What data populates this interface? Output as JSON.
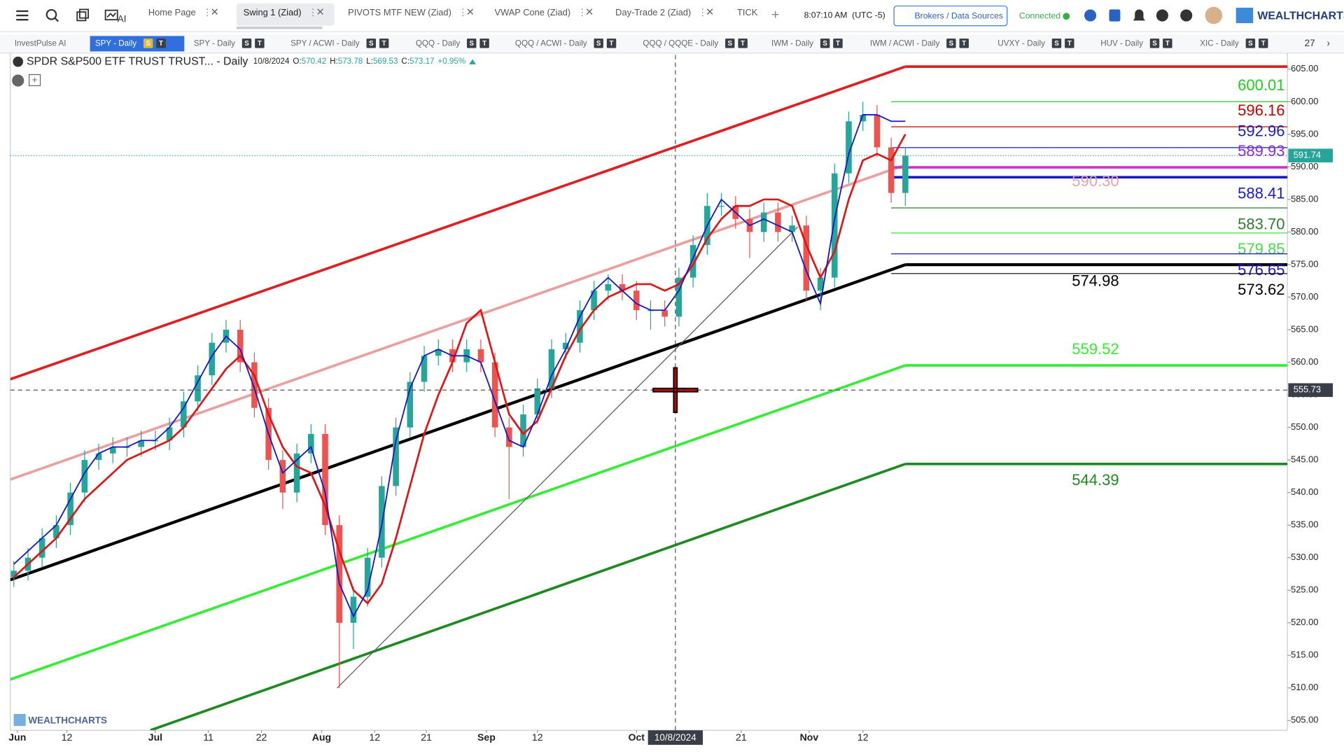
{
  "toolbar": {
    "tabs": [
      "Home Page",
      "Swing 1 (Ziad)",
      "PIVOTS MTF NEW (Ziad)",
      "VWAP Cone (Ziad)",
      "Day-Trade 2 (Ziad)",
      "TICK"
    ],
    "active_tab_index": 1,
    "time": "8:07:10 AM",
    "timezone": "(UTC -5)",
    "brokers_button": "Brokers / Data Sources",
    "status": "Connected",
    "brand": "WEALTHCHARTS",
    "ai_label": "AI"
  },
  "watchlist": {
    "tabs": [
      {
        "name": "InvestPulse AI",
        "badges": []
      },
      {
        "name": "SPY - Daily",
        "badges": [
          "S",
          "T"
        ]
      },
      {
        "name": "SPY - Daily",
        "badges": [
          "S",
          "T"
        ]
      },
      {
        "name": "SPY / ACWI - Daily",
        "badges": [
          "S",
          "T"
        ]
      },
      {
        "name": "QQQ - Daily",
        "badges": [
          "S",
          "T"
        ]
      },
      {
        "name": "QQQ / ACWI - Daily",
        "badges": [
          "S",
          "T"
        ]
      },
      {
        "name": "QQQ / QQQE - Daily",
        "badges": [
          "S",
          "T"
        ]
      },
      {
        "name": "IWM - Daily",
        "badges": [
          "S",
          "T"
        ]
      },
      {
        "name": "IWM / ACWI - Daily",
        "badges": [
          "S",
          "T"
        ]
      },
      {
        "name": "UVXY - Daily",
        "badges": [
          "S",
          "T"
        ]
      },
      {
        "name": "HUV - Daily",
        "badges": [
          "S",
          "T"
        ]
      },
      {
        "name": "XIC - Daily",
        "badges": [
          "S",
          "T"
        ]
      }
    ],
    "active_index": 1,
    "count": "27"
  },
  "chart_data": {
    "type": "candlestick",
    "title": "SPDR S&P500 ETF TRUST TRUST... - Daily",
    "legend_date": "10/8/2024",
    "legend_items": [
      {
        "key": "O:",
        "value": "570.42"
      },
      {
        "key": "H:",
        "value": "573.78"
      },
      {
        "key": "L:",
        "value": "569.53"
      },
      {
        "key": "C:",
        "value": "573.17"
      }
    ],
    "legend_change": "+0.95%",
    "watermark": "WEALTHCHARTS",
    "xlim": [
      -0.5,
      180
    ],
    "ylim": [
      503.5,
      607.2
    ],
    "xticks": [
      {
        "value": 0.5,
        "label": "Jun"
      },
      {
        "value": 7.5,
        "label": "12"
      },
      {
        "value": 20,
        "label": "Jul"
      },
      {
        "value": 27.5,
        "label": "11"
      },
      {
        "value": 35,
        "label": "22"
      },
      {
        "value": 43.5,
        "label": "Aug"
      },
      {
        "value": 51,
        "label": "12"
      },
      {
        "value": 58.3,
        "label": "21"
      },
      {
        "value": 66.8,
        "label": "Sep"
      },
      {
        "value": 74,
        "label": "12"
      },
      {
        "value": 88,
        "label": "Oct"
      },
      {
        "value": 102.8,
        "label": "21"
      },
      {
        "value": 112.4,
        "label": "Nov"
      },
      {
        "value": 120,
        "label": "12"
      }
    ],
    "yticks": [
      {
        "value": 505,
        "label": "505.00"
      },
      {
        "value": 510,
        "label": "510.00"
      },
      {
        "value": 515,
        "label": "515.00"
      },
      {
        "value": 520,
        "label": "520.00"
      },
      {
        "value": 525,
        "label": "525.00"
      },
      {
        "value": 530,
        "label": "530.00"
      },
      {
        "value": 535,
        "label": "535.00"
      },
      {
        "value": 540,
        "label": "540.00"
      },
      {
        "value": 545,
        "label": "545.00"
      },
      {
        "value": 550,
        "label": "550.00"
      },
      {
        "value": 555,
        "label": "555.00"
      },
      {
        "value": 560,
        "label": "560.00"
      },
      {
        "value": 565,
        "label": "565.00"
      },
      {
        "value": 570,
        "label": "570.00"
      },
      {
        "value": 575,
        "label": "575.00"
      },
      {
        "value": 580,
        "label": "580.00"
      },
      {
        "value": 585,
        "label": "585.00"
      },
      {
        "value": 590,
        "label": "590.00"
      },
      {
        "value": 595,
        "label": "595.00"
      },
      {
        "value": 600,
        "label": "600.00"
      },
      {
        "value": 605,
        "label": "605.00"
      }
    ],
    "up_color": "#26a69a",
    "down_color": "#ef5350",
    "x": [
      0,
      2,
      4,
      6,
      8,
      10,
      12,
      14,
      16,
      18,
      20,
      22,
      24,
      26,
      28,
      30,
      32,
      34,
      36,
      38,
      40,
      42,
      44,
      46,
      48,
      50,
      52,
      54,
      56,
      58,
      60,
      62,
      64,
      66,
      68,
      70,
      72,
      74,
      76,
      78,
      80,
      82,
      84,
      86,
      88,
      90,
      92,
      94,
      96,
      98,
      100,
      102,
      104,
      106,
      108,
      110,
      112,
      114,
      116,
      118,
      120,
      122,
      124,
      126
    ],
    "open": [
      527,
      528,
      530,
      533,
      535,
      540,
      545,
      546,
      547,
      547,
      548,
      548,
      550,
      554,
      558,
      563,
      565,
      560,
      553,
      545,
      540,
      546,
      549,
      535,
      520,
      524,
      530,
      541,
      550,
      557,
      561,
      562,
      560,
      562,
      560,
      550,
      547,
      552,
      556,
      562,
      563,
      568,
      571,
      572,
      571,
      568,
      568,
      567,
      573,
      578,
      584,
      584,
      582,
      580,
      583,
      580,
      581,
      571,
      573,
      589,
      597,
      598,
      593,
      586
    ],
    "high": [
      529.5,
      531.5,
      534.5,
      536.5,
      541.5,
      546.5,
      547.5,
      548.5,
      548.5,
      549.5,
      549.5,
      551.5,
      555.5,
      559.5,
      564.5,
      566.5,
      566.5,
      561.5,
      554.5,
      546.5,
      547.5,
      550.5,
      550.5,
      536.5,
      525.5,
      531.5,
      542.5,
      551.5,
      558.5,
      562.5,
      563.5,
      563.5,
      563.5,
      563.5,
      561.5,
      551.5,
      553.5,
      557.5,
      563.5,
      564.5,
      569.5,
      572.5,
      573.5,
      573.5,
      572.5,
      569.5,
      569.5,
      574.5,
      579.5,
      586,
      586,
      585.5,
      583.5,
      584.5,
      584.5,
      582.5,
      582.5,
      574.5,
      590.5,
      598.5,
      600,
      599.5,
      594.5,
      593
    ],
    "low": [
      525.5,
      526.5,
      528.5,
      531.5,
      533.5,
      538.5,
      543.5,
      544.5,
      545.5,
      545.5,
      546.5,
      546.5,
      548.5,
      552.5,
      556.5,
      561.5,
      558.5,
      551.5,
      543.5,
      537.5,
      538.5,
      544.5,
      533.5,
      510,
      516,
      522.5,
      528.5,
      539.5,
      548.5,
      555.5,
      559.5,
      558.5,
      558.5,
      558.5,
      548.5,
      539,
      545.5,
      550.5,
      554.5,
      560.5,
      561.5,
      566.5,
      569.5,
      569.5,
      566.5,
      565,
      565.5,
      565.5,
      571.5,
      576.5,
      582.5,
      580.5,
      576,
      578.5,
      578.5,
      578.5,
      569.5,
      568,
      571.5,
      587.5,
      595.5,
      591.5,
      584.5,
      584
    ],
    "close": [
      528,
      530,
      533,
      535,
      540,
      545,
      546,
      547,
      547,
      548,
      548,
      550,
      554,
      558,
      563,
      565,
      560,
      553,
      545,
      540,
      546,
      549,
      535,
      520,
      524,
      530,
      541,
      550,
      557,
      561,
      562,
      560,
      562,
      560,
      550,
      547,
      552,
      556,
      562,
      563,
      568,
      571,
      572,
      571,
      568,
      568,
      567,
      573,
      578,
      584,
      584,
      582,
      580,
      583,
      580,
      581,
      571,
      573,
      589,
      597,
      598,
      593,
      586,
      591.74
    ],
    "last_price_color": "#26a69a",
    "moving_averages": [
      {
        "color": "#e01515",
        "values": [
          527,
          529,
          531,
          533,
          536,
          539,
          541,
          543,
          545,
          546,
          547,
          548,
          550,
          553,
          556,
          559,
          561,
          558,
          552,
          547,
          544,
          543,
          538,
          531,
          525,
          523,
          526,
          533,
          541,
          549,
          555,
          560,
          566,
          568,
          560,
          552,
          549,
          551,
          556,
          561,
          565,
          568,
          570,
          571,
          572,
          572,
          571,
          572,
          575,
          579,
          582,
          584,
          584,
          585,
          585,
          584,
          578,
          573,
          577,
          585,
          591,
          592,
          591,
          595
        ]
      },
      {
        "color": "#1818c8",
        "values": [
          529,
          531,
          533,
          535,
          539,
          543,
          546,
          547,
          547,
          548,
          548,
          550,
          553,
          557,
          561,
          564,
          562,
          556,
          549,
          543,
          545,
          547,
          540,
          526,
          521,
          525,
          535,
          548,
          556,
          561,
          562,
          561,
          561,
          560,
          554,
          548,
          547,
          552,
          558,
          562,
          567,
          571,
          573,
          571,
          569,
          568,
          568,
          571,
          576,
          581,
          585,
          583,
          581,
          582,
          581,
          580,
          574,
          569,
          582,
          592,
          598,
          598,
          597,
          597
        ]
      }
    ],
    "trendlines": [
      {
        "color": "#e02020",
        "width": 3,
        "x": [
          -0.5,
          126
        ],
        "y": [
          557.4,
          605.4
        ],
        "extend": true
      },
      {
        "color": "#e8a0a0",
        "width": 3,
        "x": [
          -0.5,
          126
        ],
        "y": [
          542,
          590.3
        ],
        "extend": false
      },
      {
        "color": "#000000",
        "width": 3.5,
        "x": [
          -0.5,
          126
        ],
        "y": [
          526.6,
          574.98
        ],
        "extend": true
      },
      {
        "color": "#33ee33",
        "width": 3,
        "x": [
          -0.5,
          126
        ],
        "y": [
          511.3,
          559.52
        ],
        "extend": true
      },
      {
        "color": "#1f8a1f",
        "width": 3,
        "x": [
          19.3,
          126
        ],
        "y": [
          503.5,
          544.39
        ],
        "extend": true
      },
      {
        "color": "#555555",
        "width": 1,
        "x": [
          45.7,
          110.8
        ],
        "y": [
          510,
          580.8
        ],
        "extend": false
      }
    ],
    "levels": [
      {
        "value": 600.01,
        "label": "600.01",
        "color": "#22cc22",
        "line": "#22cc22"
      },
      {
        "value": 596.16,
        "label": "596.16",
        "color": "#cc0000",
        "line": "#cc0000"
      },
      {
        "value": 592.96,
        "label": "592.96",
        "color": "#1a1acc",
        "line": "#1a1acc"
      },
      {
        "value": 589.93,
        "label": "589.93",
        "color": "#8a2be2",
        "line": "#cc33cc"
      },
      {
        "value": 588.41,
        "label": "588.41",
        "color": "#1a1acc",
        "line": "#1a1acc"
      },
      {
        "value": 583.7,
        "label": "583.70",
        "color": "#2e7d32",
        "line": "#2e7d32"
      },
      {
        "value": 579.85,
        "label": "579.85",
        "color": "#44dd44",
        "line": "#44dd44"
      },
      {
        "value": 576.65,
        "label": "576.65",
        "color": "#1a1acc",
        "line": "#1a1acc"
      },
      {
        "value": 573.62,
        "label": "573.62",
        "color": "#000000",
        "line": "#000000"
      },
      {
        "value": 590.3,
        "label": "590.30",
        "color": "#e8a3a3",
        "line": null
      },
      {
        "value": 574.98,
        "label": "574.98",
        "color": "#000000",
        "line": null
      },
      {
        "value": 559.52,
        "label": "559.52",
        "color": "#33ee33",
        "line": null
      },
      {
        "value": 544.39,
        "label": "544.39",
        "color": "#1f8a1f",
        "line": null
      }
    ],
    "crosshair": {
      "x": 93.5,
      "price": 555.73,
      "date": "10/8/2024"
    }
  }
}
